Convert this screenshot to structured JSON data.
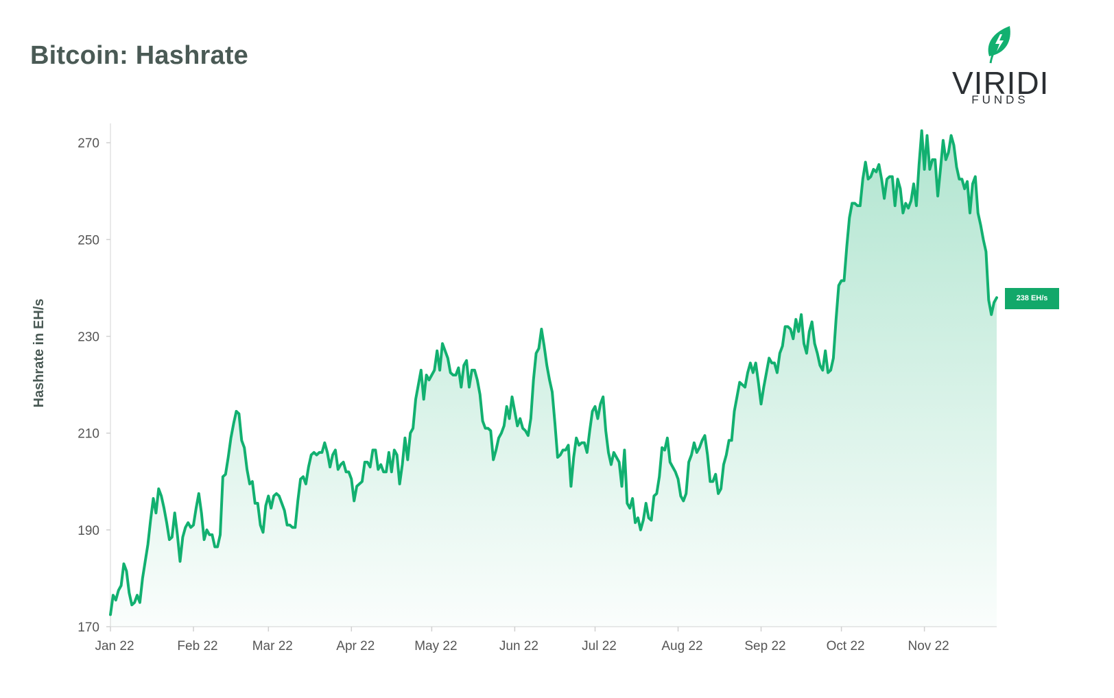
{
  "title": "Bitcoin: Hashrate",
  "logo": {
    "word": "VIRIDI",
    "sub": "FUNDS",
    "icon": "leaf-bolt-icon"
  },
  "colors": {
    "line": "#12b070",
    "fill": "#12b070",
    "badge": "#12a86a",
    "title": "#4a5a55"
  },
  "badge_label": "238 EH/s",
  "chart_data": {
    "type": "area",
    "title": "Bitcoin: Hashrate",
    "ylabel": "Hashrate in EH/s",
    "xlabel": "",
    "ylim": [
      170,
      274
    ],
    "yticks": [
      170,
      190,
      210,
      230,
      250,
      270
    ],
    "xticks": [
      "Jan 22",
      "Feb 22",
      "Mar 22",
      "Apr 22",
      "May 22",
      "Jun 22",
      "Jul 22",
      "Aug 22",
      "Sep 22",
      "Oct 22",
      "Nov 22"
    ],
    "grid": false,
    "last_value_label": "238 EH/s",
    "series": [
      {
        "values": [
          172.5,
          176.5,
          175.5,
          177.5,
          178.5,
          183,
          181.5,
          177,
          174.5,
          175,
          176.5,
          175,
          180,
          183.5,
          187,
          192,
          196.5,
          193.5,
          198.5,
          197,
          194.5,
          191.5,
          188,
          188.5,
          193.5,
          189,
          183.5,
          188.5,
          190.5,
          191.5,
          190.5,
          191,
          194.5,
          197.5,
          193.5,
          188,
          190,
          189,
          189,
          186.5,
          186.5,
          189,
          201,
          201.5,
          205,
          209,
          212,
          214.5,
          214,
          208.5,
          207,
          202.5,
          199.5,
          200,
          195.5,
          195.5,
          191,
          189.5,
          195,
          197,
          194.5,
          197,
          197.5,
          197,
          195.5,
          194,
          191,
          191,
          190.5,
          190.5,
          196,
          200.5,
          201,
          199.5,
          203,
          205.5,
          206,
          205.5,
          206,
          206,
          208,
          206,
          203,
          205.5,
          206.5,
          202.5,
          203.5,
          204,
          202,
          202,
          200.5,
          196,
          199,
          199.5,
          200,
          204,
          204,
          203,
          206.5,
          206.5,
          202.5,
          203.5,
          202,
          202,
          206,
          202,
          206.5,
          205.5,
          199.5,
          203.5,
          209,
          204.5,
          210,
          211,
          217,
          220,
          223,
          217,
          222,
          221,
          222,
          223,
          227,
          223,
          228.5,
          227,
          225.5,
          222.5,
          222,
          222,
          223.5,
          219.5,
          224,
          225,
          219.5,
          223,
          223,
          221,
          218,
          212.5,
          211,
          211,
          210.5,
          204.5,
          206.5,
          209,
          210,
          211.5,
          215.5,
          213,
          217.5,
          214.5,
          211.5,
          213,
          211,
          210.5,
          209.5,
          213,
          221,
          226.5,
          227.5,
          231.5,
          228,
          224,
          221,
          218.5,
          212,
          205,
          205.5,
          206.5,
          206.5,
          207.5,
          199,
          205,
          209,
          207.5,
          208,
          208,
          206,
          210.5,
          214.5,
          215.5,
          213,
          216,
          217.5,
          210.5,
          206,
          203.5,
          206,
          205,
          204,
          199,
          206.5,
          195.5,
          194.5,
          196.5,
          191.5,
          192.5,
          190,
          192,
          195.5,
          192.5,
          192,
          197,
          197.5,
          201,
          207,
          206.5,
          209,
          204,
          203,
          202,
          200.5,
          197,
          196,
          197.5,
          204,
          205.5,
          208,
          206,
          207,
          208.5,
          209.5,
          205.5,
          200,
          200,
          201.5,
          197.5,
          198.5,
          203.5,
          205.5,
          208.5,
          208.5,
          214.5,
          217.5,
          220.5,
          220,
          219.5,
          222.5,
          224.5,
          222.5,
          224.5,
          220.5,
          216,
          219.5,
          222.5,
          225.5,
          224.5,
          224.5,
          222.5,
          226.5,
          228,
          232,
          232,
          231.5,
          229.5,
          233.5,
          231,
          234.5,
          228.5,
          226.5,
          231,
          233,
          228.5,
          226.5,
          224,
          223,
          227,
          222.5,
          223,
          225.5,
          233.5,
          240.5,
          241.5,
          241.5,
          248.5,
          254.5,
          257.5,
          257.5,
          257,
          257,
          262.5,
          266,
          262.5,
          263,
          264.5,
          264,
          265.5,
          262.5,
          258.5,
          262.5,
          263,
          263,
          257,
          262.5,
          260.5,
          255.5,
          257.5,
          256.5,
          258,
          261.5,
          257,
          265.5,
          272.5,
          264.5,
          271.5,
          264.5,
          266.5,
          266.5,
          259,
          264.5,
          270.5,
          266.5,
          268,
          271.5,
          269.5,
          265,
          262.5,
          262.5,
          260.5,
          262,
          255.5,
          261.5,
          263,
          255.5,
          253,
          250,
          247.5,
          237.5,
          234.5,
          237,
          238
        ]
      }
    ]
  }
}
